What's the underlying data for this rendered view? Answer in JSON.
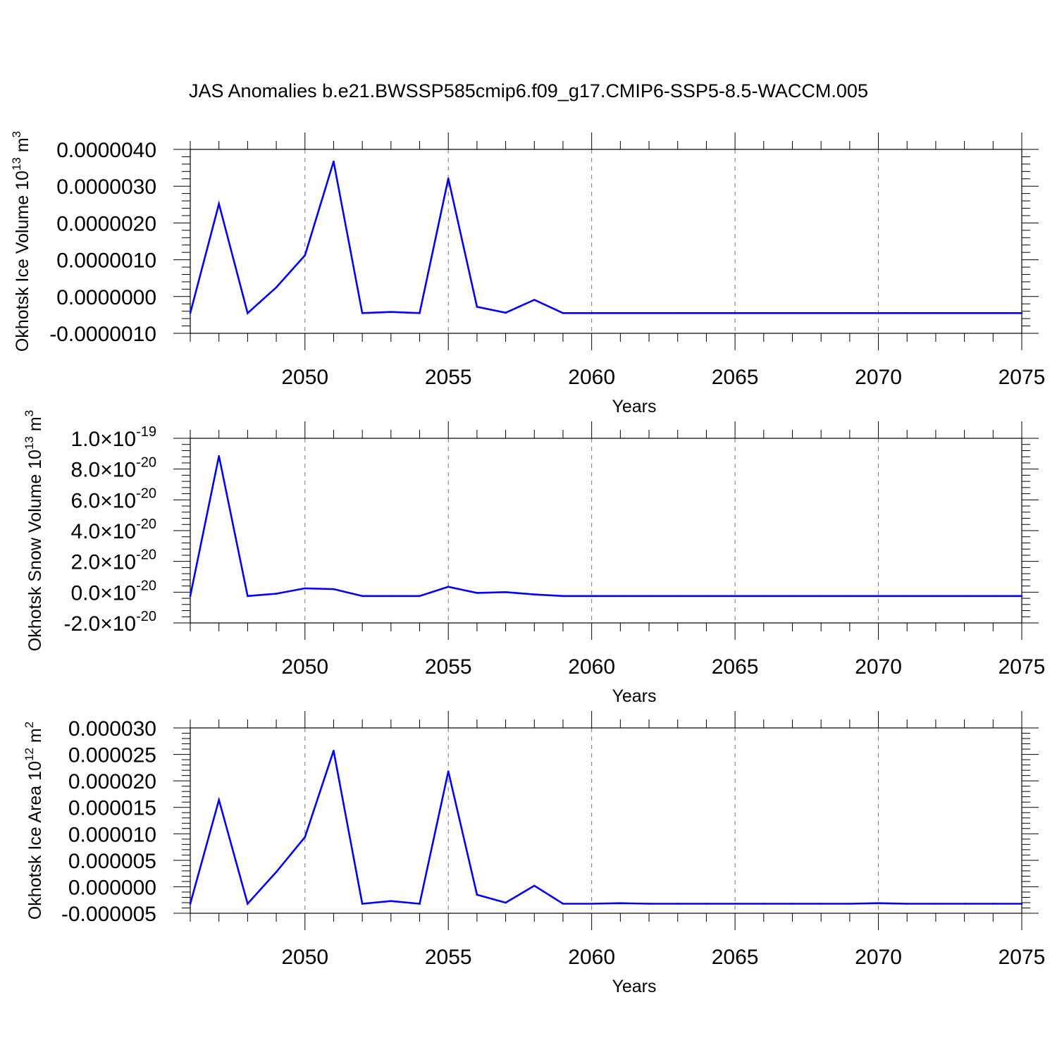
{
  "title": "JAS Anomalies b.e21.BWSSP585cmip6.f09_g17.CMIP6-SSP5-8.5-WACCM.005",
  "line_color": "#0000ff",
  "chart_data": [
    {
      "type": "line",
      "ylabel": "Okhotsk Ice Volume",
      "yunit": {
        "pre": "10",
        "exp": "13",
        "mid": " m",
        "exp2": "3"
      },
      "xlabel": "Years",
      "xlim": [
        2046,
        2075
      ],
      "ylim": [
        -1e-06,
        4e-06
      ],
      "yticks": [
        -1e-06,
        0.0,
        1e-06,
        2e-06,
        3e-06,
        4e-06
      ],
      "ytick_labels": [
        "-0.0000010",
        "0.0000000",
        "0.0000010",
        "0.0000020",
        "0.0000030",
        "0.0000040"
      ],
      "xticks": [
        2050,
        2055,
        2060,
        2065,
        2070,
        2075
      ],
      "xtick_labels": [
        "2050",
        "2055",
        "2060",
        "2065",
        "2070",
        "2075"
      ],
      "grid": "vertical dashed at major x ticks",
      "x": [
        2046,
        2047,
        2048,
        2049,
        2050,
        2051,
        2052,
        2053,
        2054,
        2055,
        2056,
        2057,
        2058,
        2059,
        2060,
        2061,
        2062,
        2063,
        2064,
        2065,
        2066,
        2067,
        2068,
        2069,
        2070,
        2071,
        2072,
        2073,
        2074,
        2075
      ],
      "values": [
        -4.5e-07,
        2.52e-06,
        -4.5e-07,
        2.5e-07,
        1.12e-06,
        3.67e-06,
        -4.5e-07,
        -4.2e-07,
        -4.5e-07,
        3.21e-06,
        -2.8e-07,
        -4.4e-07,
        -9e-08,
        -4.5e-07,
        -4.5e-07,
        -4.5e-07,
        -4.5e-07,
        -4.5e-07,
        -4.5e-07,
        -4.5e-07,
        -4.5e-07,
        -4.5e-07,
        -4.5e-07,
        -4.5e-07,
        -4.5e-07,
        -4.5e-07,
        -4.5e-07,
        -4.5e-07,
        -4.5e-07,
        -4.5e-07
      ]
    },
    {
      "type": "line",
      "ylabel": "Okhotsk Snow Volume",
      "yunit": {
        "pre": "10",
        "exp": "13",
        "mid": " m",
        "exp2": "3"
      },
      "xlabel": "Years",
      "xlim": [
        2046,
        2075
      ],
      "ylim": [
        -2e-20,
        1e-19
      ],
      "yticks": [
        -2e-20,
        0,
        2e-20,
        4e-20,
        6e-20,
        8e-20,
        1e-19
      ],
      "ytick_labels": [
        {
          "mant": "-2.0",
          "exp": "-20"
        },
        {
          "mant": "0.0",
          "exp": "-20"
        },
        {
          "mant": "2.0",
          "exp": "-20"
        },
        {
          "mant": "4.0",
          "exp": "-20"
        },
        {
          "mant": "6.0",
          "exp": "-20"
        },
        {
          "mant": "8.0",
          "exp": "-20"
        },
        {
          "mant": "1.0",
          "exp": "-19"
        }
      ],
      "xticks": [
        2050,
        2055,
        2060,
        2065,
        2070,
        2075
      ],
      "xtick_labels": [
        "2050",
        "2055",
        "2060",
        "2065",
        "2070",
        "2075"
      ],
      "grid": "vertical dashed at major x ticks",
      "x": [
        2046,
        2047,
        2048,
        2049,
        2050,
        2051,
        2052,
        2053,
        2054,
        2055,
        2056,
        2057,
        2058,
        2059,
        2060,
        2061,
        2062,
        2063,
        2064,
        2065,
        2066,
        2067,
        2068,
        2069,
        2070,
        2071,
        2072,
        2073,
        2074,
        2075
      ],
      "values": [
        -2.5e-21,
        8.85e-20,
        -2.5e-21,
        -1e-21,
        2.5e-21,
        2e-21,
        -2.5e-21,
        -2.5e-21,
        -2.5e-21,
        3.5e-21,
        -5e-22,
        0.0,
        -1.5e-21,
        -2.5e-21,
        -2.5e-21,
        -2.5e-21,
        -2.5e-21,
        -2.5e-21,
        -2.5e-21,
        -2.5e-21,
        -2.5e-21,
        -2.5e-21,
        -2.5e-21,
        -2.5e-21,
        -2.5e-21,
        -2.5e-21,
        -2.5e-21,
        -2.5e-21,
        -2.5e-21,
        -2.5e-21
      ]
    },
    {
      "type": "line",
      "ylabel": "Okhotsk Ice Area",
      "yunit": {
        "pre": "10",
        "exp": "12",
        "mid": " m",
        "exp2": "2"
      },
      "xlabel": "Years",
      "xlim": [
        2046,
        2075
      ],
      "ylim": [
        -5e-06,
        3e-05
      ],
      "yticks": [
        -5e-06,
        0.0,
        5e-06,
        1e-05,
        1.5e-05,
        2e-05,
        2.5e-05,
        3e-05
      ],
      "ytick_labels": [
        "-0.000005",
        "0.000000",
        "0.000005",
        "0.000010",
        "0.000015",
        "0.000020",
        "0.000025",
        "0.000030"
      ],
      "xticks": [
        2050,
        2055,
        2060,
        2065,
        2070,
        2075
      ],
      "xtick_labels": [
        "2050",
        "2055",
        "2060",
        "2065",
        "2070",
        "2075"
      ],
      "grid": "vertical dashed at major x ticks",
      "x": [
        2046,
        2047,
        2048,
        2049,
        2050,
        2051,
        2052,
        2053,
        2054,
        2055,
        2056,
        2057,
        2058,
        2059,
        2060,
        2061,
        2062,
        2063,
        2064,
        2065,
        2066,
        2067,
        2068,
        2069,
        2070,
        2071,
        2072,
        2073,
        2074,
        2075
      ],
      "values": [
        -3.2e-06,
        1.64e-05,
        -3.2e-06,
        2.8e-06,
        9.4e-06,
        2.57e-05,
        -3.2e-06,
        -2.7e-06,
        -3.2e-06,
        2.18e-05,
        -1.5e-06,
        -3e-06,
        2e-07,
        -3.2e-06,
        -3.2e-06,
        -3.1e-06,
        -3.2e-06,
        -3.2e-06,
        -3.2e-06,
        -3.2e-06,
        -3.2e-06,
        -3.2e-06,
        -3.2e-06,
        -3.2e-06,
        -3.1e-06,
        -3.2e-06,
        -3.2e-06,
        -3.2e-06,
        -3.2e-06,
        -3.2e-06
      ]
    }
  ]
}
